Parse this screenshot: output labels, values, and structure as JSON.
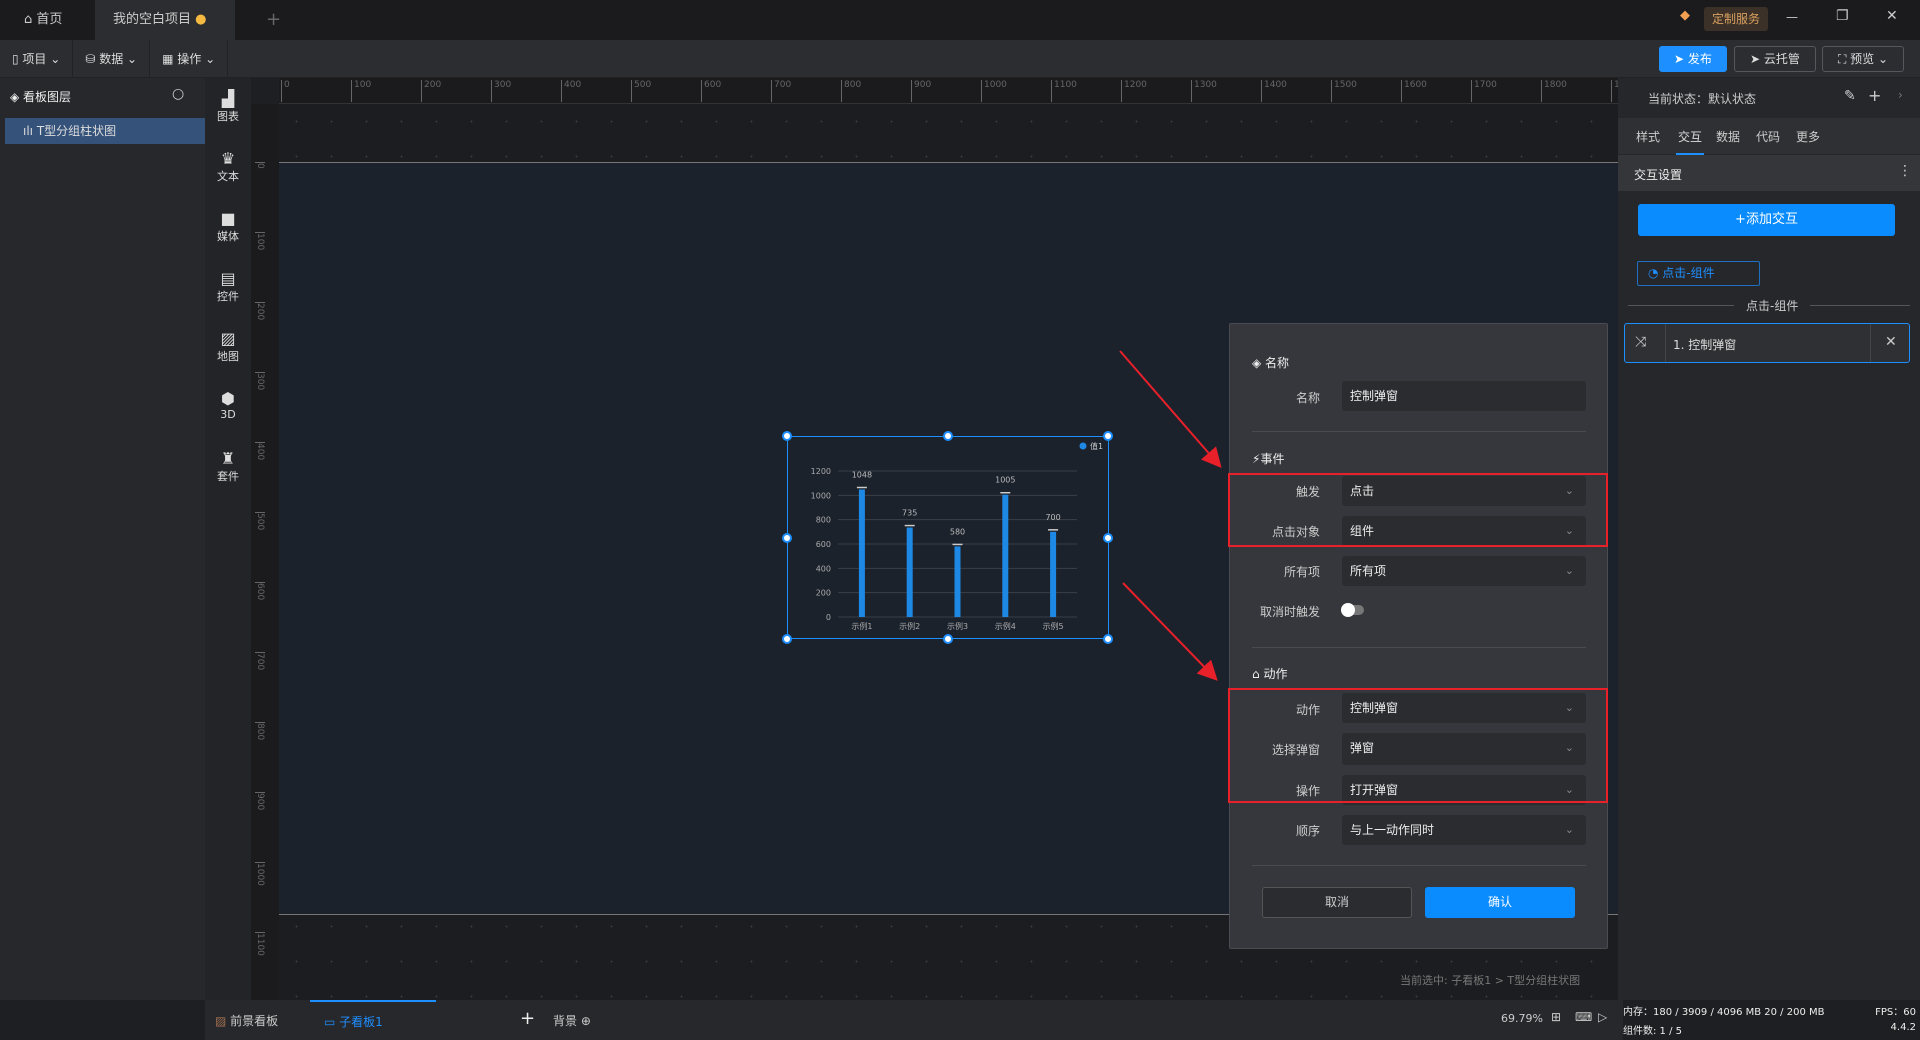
{
  "titlebar": {
    "home_tab": "首页",
    "project_tab": "我的空白项目",
    "new_tab": "+",
    "service_badge": "定制服务"
  },
  "toolbar": {
    "project": "项目",
    "data": "数据",
    "operate": "操作",
    "publish": "发布",
    "cloud": "云托管",
    "preview": "预览"
  },
  "layers": {
    "title": "看板图层",
    "items": [
      {
        "label": "T型分组柱状图"
      }
    ]
  },
  "component_bar": [
    {
      "icon": "chart-icon",
      "label": "图表"
    },
    {
      "icon": "text-icon",
      "label": "文本"
    },
    {
      "icon": "media-icon",
      "label": "媒体"
    },
    {
      "icon": "control-icon",
      "label": "控件"
    },
    {
      "icon": "map-icon",
      "label": "地图"
    },
    {
      "icon": "cube-icon",
      "label": "3D"
    },
    {
      "icon": "suite-icon",
      "label": "套件"
    }
  ],
  "ruler": {
    "h_ticks": [
      "0",
      "100",
      "200",
      "300",
      "400",
      "500",
      "600",
      "700",
      "800",
      "900",
      "1000",
      "1100",
      "1200",
      "1300",
      "1400",
      "1500",
      "1600",
      "1700",
      "1800",
      "1900"
    ],
    "v_ticks": [
      "0",
      "100",
      "200",
      "300",
      "400",
      "500",
      "600",
      "700",
      "800",
      "900",
      "1000",
      "1100",
      "1200"
    ]
  },
  "chart_data": {
    "type": "bar",
    "categories": [
      "示例1",
      "示例2",
      "示例3",
      "示例4",
      "示例5"
    ],
    "series": [
      {
        "name": "值1",
        "values": [
          1048,
          735,
          580,
          1005,
          700
        ]
      }
    ],
    "ylim": [
      0,
      1200
    ],
    "yticks": [
      "0",
      "200",
      "400",
      "600",
      "800",
      "1000",
      "1200"
    ],
    "grid": true,
    "legend": "top-right",
    "color": "#1e88e5"
  },
  "dialog": {
    "name_section": "名称",
    "name_label": "名称",
    "name_value": "控制弹窗",
    "event_section": "事件",
    "trigger_label": "触发",
    "trigger_value": "点击",
    "target_label": "点击对象",
    "target_value": "组件",
    "items_label": "所有项",
    "items_value": "所有项",
    "cancel_trigger_label": "取消时触发",
    "cancel_trigger_on": false,
    "action_section": "动作",
    "action_label": "动作",
    "action_value": "控制弹窗",
    "popup_label": "选择弹窗",
    "popup_value": "弹窗",
    "op_label": "操作",
    "op_value": "打开弹窗",
    "order_label": "顺序",
    "order_value": "与上一动作同时",
    "cancel": "取消",
    "confirm": "确认"
  },
  "right": {
    "state_label": "当前状态：默认状态",
    "tabs": [
      "样式",
      "交互",
      "数据",
      "代码",
      "更多"
    ],
    "active_tab": "交互",
    "section": "交互设置",
    "add_button": "+添加交互",
    "event_tag": "点击-组件",
    "group_title": "点击-组件",
    "action_item": "1. 控制弹窗"
  },
  "canvas": {
    "selection_path": "当前选中: 子看板1 > T型分组柱状图"
  },
  "bottom": {
    "foreground": "前景看板",
    "sub_board": "子看板1",
    "add": "+",
    "background": "背景",
    "zoom": "69.79%",
    "memory": "内存：180 / 3909 / 4096 MB  20 / 200 MB",
    "fps": "FPS：60",
    "components": "组件数: 1 / 5",
    "version": "4.4.2"
  },
  "colors": {
    "accent": "#1e8fff",
    "highlight": "#e8202a"
  }
}
